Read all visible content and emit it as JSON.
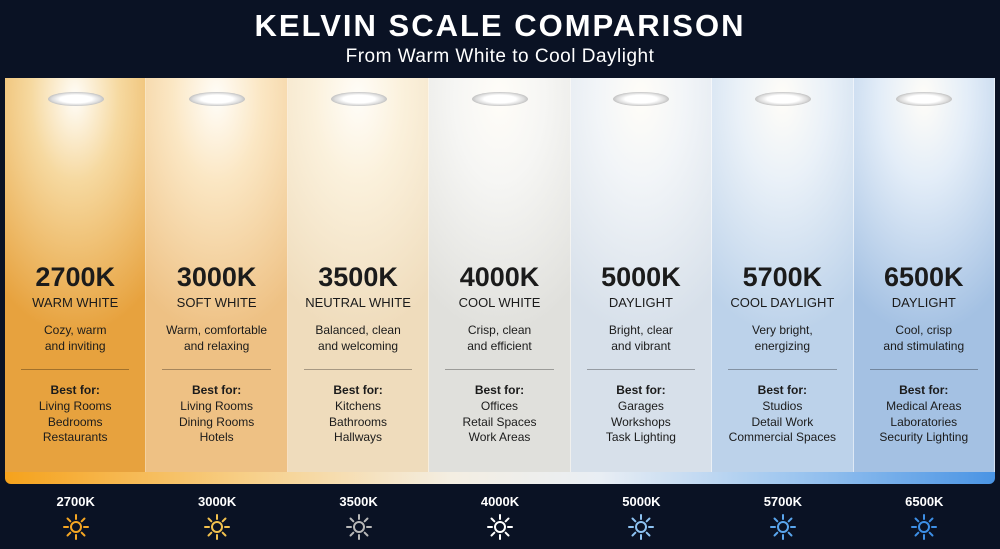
{
  "header": {
    "title": "KELVIN SCALE COMPARISON",
    "subtitle": "From Warm White to Cool Daylight"
  },
  "columns": [
    {
      "kelvin": "2700K",
      "name": "WARM WHITE",
      "description": [
        "Cozy, warm",
        "and inviting"
      ],
      "best_for_label": "Best for:",
      "uses": [
        "Living Rooms",
        "Bedrooms",
        "Restaurants"
      ]
    },
    {
      "kelvin": "3000K",
      "name": "SOFT WHITE",
      "description": [
        "Warm, comfortable",
        "and relaxing"
      ],
      "best_for_label": "Best for:",
      "uses": [
        "Living Rooms",
        "Dining Rooms",
        "Hotels"
      ]
    },
    {
      "kelvin": "3500K",
      "name": "NEUTRAL WHITE",
      "description": [
        "Balanced, clean",
        "and welcoming"
      ],
      "best_for_label": "Best for:",
      "uses": [
        "Kitchens",
        "Bathrooms",
        "Hallways"
      ]
    },
    {
      "kelvin": "4000K",
      "name": "COOL WHITE",
      "description": [
        "Crisp, clean",
        "and efficient"
      ],
      "best_for_label": "Best for:",
      "uses": [
        "Offices",
        "Retail Spaces",
        "Work Areas"
      ]
    },
    {
      "kelvin": "5000K",
      "name": "DAYLIGHT",
      "description": [
        "Bright, clear",
        "and vibrant"
      ],
      "best_for_label": "Best for:",
      "uses": [
        "Garages",
        "Workshops",
        "Task Lighting"
      ]
    },
    {
      "kelvin": "5700K",
      "name": "COOL DAYLIGHT",
      "description": [
        "Very bright,",
        "energizing"
      ],
      "best_for_label": "Best for:",
      "uses": [
        "Studios",
        "Detail Work",
        "Commercial Spaces"
      ]
    },
    {
      "kelvin": "6500K",
      "name": "DAYLIGHT",
      "description": [
        "Cool, crisp",
        "and stimulating"
      ],
      "best_for_label": "Best for:",
      "uses": [
        "Medical Areas",
        "Laboratories",
        "Security Lighting"
      ]
    }
  ],
  "scale": [
    "2700K",
    "3000K",
    "3500K",
    "4000K",
    "5000K",
    "5700K",
    "6500K"
  ]
}
